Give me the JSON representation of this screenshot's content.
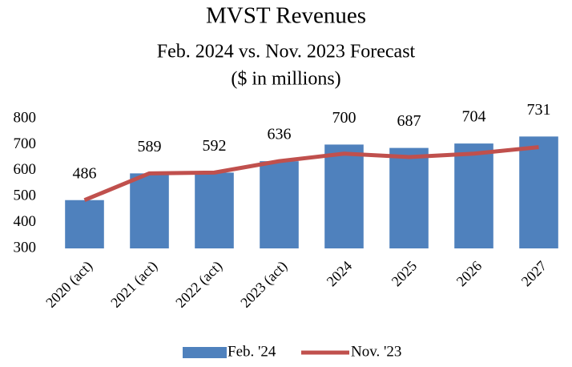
{
  "chart_data": {
    "type": "bar",
    "title": "MVST Revenues",
    "subtitle": [
      "Feb. 2024 vs. Nov. 2023 Forecast",
      "($ in millions)"
    ],
    "categories": [
      "2020 (act)",
      "2021 (act)",
      "2022 (act)",
      "2023 (act)",
      "2024",
      "2025",
      "2026",
      "2027"
    ],
    "series": [
      {
        "name": "Feb. '24",
        "type": "bar",
        "color": "#4f81bd",
        "values": [
          486,
          589,
          592,
          636,
          700,
          687,
          704,
          731
        ],
        "data_labels": true
      },
      {
        "name": "Nov. '23",
        "type": "line",
        "color": "#c0504d",
        "values": [
          486,
          589,
          592,
          636,
          665,
          652,
          665,
          690
        ]
      }
    ],
    "ylim": [
      300,
      800
    ],
    "yticks": [
      300,
      400,
      500,
      600,
      700,
      800
    ],
    "grid": false,
    "legend": "bottom"
  }
}
